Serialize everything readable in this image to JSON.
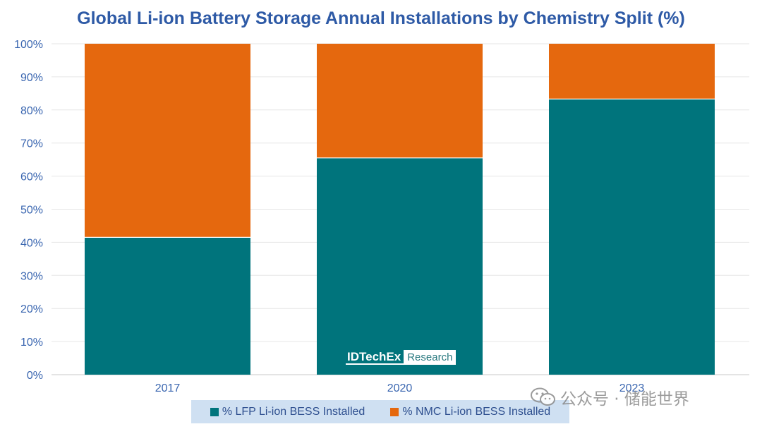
{
  "chart_data": {
    "type": "bar",
    "stacked": true,
    "title": "Global Li-ion Battery Storage Annual Installations by Chemistry Split (%)",
    "categories": [
      "2017",
      "2020",
      "2023"
    ],
    "series": [
      {
        "name": "% LFP Li-ion BESS Installed",
        "color": "#00747c",
        "values": [
          41.5,
          65.5,
          83.3
        ]
      },
      {
        "name": "% NMC Li-ion BESS Installed",
        "color": "#e5680e",
        "values": [
          58.5,
          34.5,
          16.7
        ]
      }
    ],
    "ylim": [
      0,
      100
    ],
    "yticks": [
      "0%",
      "10%",
      "20%",
      "30%",
      "40%",
      "50%",
      "60%",
      "70%",
      "80%",
      "90%",
      "100%"
    ],
    "xlabel": "",
    "ylabel": "",
    "grid": true,
    "legend_position": "bottom"
  },
  "branding": {
    "name": "IDTechEx",
    "tag": "Research"
  },
  "watermark": {
    "text": "公众号 · 储能世界",
    "icon": "wechat-icon"
  }
}
